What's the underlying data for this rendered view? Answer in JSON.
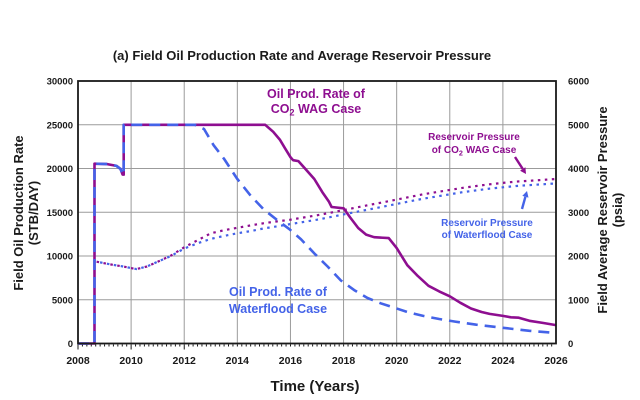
{
  "page": {
    "background": "#ffffff"
  },
  "chart_data": {
    "type": "line",
    "title": "(a) Field Oil Production Rate and Average Reservoir Pressure",
    "x_axis": {
      "label": "Time (Years)",
      "min": 2008,
      "max": 2026,
      "ticks": [
        2008,
        2010,
        2012,
        2014,
        2016,
        2018,
        2020,
        2022,
        2024,
        2026
      ],
      "minor_tick_step_years": 0.1667
    },
    "y_left": {
      "title_lines": [
        "Field Oil Production Rate",
        "(STB/DAY)"
      ],
      "min": 0,
      "max": 30000,
      "ticks": [
        0,
        5000,
        10000,
        15000,
        20000,
        25000,
        30000
      ]
    },
    "y_right": {
      "title_lines": [
        "Field Average Reservoir Pressure",
        "(psia)"
      ],
      "min": 0,
      "max": 6000,
      "ticks": [
        0,
        1000,
        2000,
        3000,
        4000,
        5000,
        6000
      ]
    },
    "grid": true,
    "colors": {
      "purple": "#8E0E90",
      "blue": "#4463E8",
      "grid": "#9b9b9b",
      "axis": "#1a1a1a",
      "text": "#1a1a1a"
    },
    "series": [
      {
        "name": "reservoir-pressure-co2-wag",
        "axis": "right",
        "color": "#8E0E90",
        "style": "dot",
        "width": 2.2,
        "points": [
          [
            2008.7,
            1870
          ],
          [
            2009.2,
            1810
          ],
          [
            2009.7,
            1760
          ],
          [
            2010.2,
            1700
          ],
          [
            2010.6,
            1760
          ],
          [
            2011.0,
            1870
          ],
          [
            2011.5,
            2010
          ],
          [
            2012.0,
            2200
          ],
          [
            2012.5,
            2360
          ],
          [
            2013.0,
            2520
          ],
          [
            2013.5,
            2590
          ],
          [
            2014.0,
            2645
          ],
          [
            2014.5,
            2700
          ],
          [
            2015.0,
            2750
          ],
          [
            2015.5,
            2790
          ],
          [
            2016.0,
            2830
          ],
          [
            2016.5,
            2880
          ],
          [
            2017.0,
            2930
          ],
          [
            2017.5,
            2990
          ],
          [
            2018.0,
            3050
          ],
          [
            2018.5,
            3110
          ],
          [
            2019.0,
            3170
          ],
          [
            2019.5,
            3230
          ],
          [
            2020.0,
            3290
          ],
          [
            2020.5,
            3350
          ],
          [
            2021.0,
            3410
          ],
          [
            2021.5,
            3460
          ],
          [
            2022.0,
            3510
          ],
          [
            2022.5,
            3560
          ],
          [
            2023.0,
            3600
          ],
          [
            2023.5,
            3640
          ],
          [
            2024.0,
            3670
          ],
          [
            2024.5,
            3700
          ],
          [
            2025.0,
            3720
          ],
          [
            2025.5,
            3740
          ],
          [
            2026.0,
            3760
          ]
        ]
      },
      {
        "name": "reservoir-pressure-waterflood",
        "axis": "right",
        "color": "#4463E8",
        "style": "dot",
        "width": 2.2,
        "dashoffset": 3.5,
        "points": [
          [
            2008.7,
            1870
          ],
          [
            2009.2,
            1810
          ],
          [
            2009.7,
            1760
          ],
          [
            2010.2,
            1700
          ],
          [
            2010.6,
            1760
          ],
          [
            2011.0,
            1870
          ],
          [
            2011.5,
            2000
          ],
          [
            2012.0,
            2170
          ],
          [
            2012.5,
            2290
          ],
          [
            2013.0,
            2390
          ],
          [
            2013.5,
            2460
          ],
          [
            2014.0,
            2520
          ],
          [
            2014.5,
            2570
          ],
          [
            2015.0,
            2630
          ],
          [
            2015.5,
            2680
          ],
          [
            2016.0,
            2730
          ],
          [
            2016.5,
            2780
          ],
          [
            2017.0,
            2830
          ],
          [
            2017.5,
            2890
          ],
          [
            2018.0,
            2950
          ],
          [
            2018.5,
            3010
          ],
          [
            2019.0,
            3070
          ],
          [
            2019.5,
            3130
          ],
          [
            2020.0,
            3190
          ],
          [
            2020.5,
            3250
          ],
          [
            2021.0,
            3310
          ],
          [
            2021.5,
            3360
          ],
          [
            2022.0,
            3410
          ],
          [
            2022.5,
            3460
          ],
          [
            2023.0,
            3500
          ],
          [
            2023.5,
            3540
          ],
          [
            2024.0,
            3570
          ],
          [
            2024.5,
            3600
          ],
          [
            2025.0,
            3620
          ],
          [
            2025.5,
            3640
          ],
          [
            2026.0,
            3660
          ]
        ]
      },
      {
        "name": "oil-prod-rate-co2-wag",
        "axis": "left",
        "color": "#8E0E90",
        "style": "solid",
        "width": 2.6,
        "points": [
          [
            2008.0,
            0
          ],
          [
            2008.62,
            0
          ],
          [
            2008.62,
            20550
          ],
          [
            2009.1,
            20500
          ],
          [
            2009.45,
            20300
          ],
          [
            2009.6,
            19950
          ],
          [
            2009.68,
            19300
          ],
          [
            2009.72,
            19300
          ],
          [
            2009.72,
            25000
          ],
          [
            2015.05,
            25000
          ],
          [
            2015.35,
            24200
          ],
          [
            2015.6,
            23300
          ],
          [
            2015.8,
            22300
          ],
          [
            2016.0,
            21300
          ],
          [
            2016.1,
            20950
          ],
          [
            2016.3,
            20850
          ],
          [
            2016.55,
            20000
          ],
          [
            2016.9,
            18800
          ],
          [
            2017.2,
            17300
          ],
          [
            2017.45,
            16200
          ],
          [
            2017.55,
            15600
          ],
          [
            2018.0,
            15450
          ],
          [
            2018.25,
            14400
          ],
          [
            2018.55,
            13200
          ],
          [
            2018.85,
            12450
          ],
          [
            2019.15,
            12150
          ],
          [
            2019.7,
            12050
          ],
          [
            2020.0,
            10900
          ],
          [
            2020.4,
            8950
          ],
          [
            2020.8,
            7700
          ],
          [
            2021.2,
            6600
          ],
          [
            2021.6,
            5950
          ],
          [
            2022.0,
            5400
          ],
          [
            2022.4,
            4650
          ],
          [
            2022.8,
            4000
          ],
          [
            2023.2,
            3600
          ],
          [
            2023.5,
            3380
          ],
          [
            2024.0,
            3150
          ],
          [
            2024.3,
            3000
          ],
          [
            2024.6,
            2950
          ],
          [
            2025.0,
            2600
          ],
          [
            2025.5,
            2350
          ],
          [
            2026.0,
            2100
          ]
        ]
      },
      {
        "name": "oil-prod-rate-waterflood",
        "axis": "left",
        "color": "#4463E8",
        "style": "dash",
        "width": 2.6,
        "points": [
          [
            2008.0,
            0
          ],
          [
            2008.62,
            0
          ],
          [
            2008.62,
            20550
          ],
          [
            2009.1,
            20500
          ],
          [
            2009.45,
            20300
          ],
          [
            2009.6,
            19950
          ],
          [
            2009.68,
            19300
          ],
          [
            2009.72,
            19300
          ],
          [
            2009.72,
            25000
          ],
          [
            2012.4,
            25000
          ],
          [
            2012.75,
            24500
          ],
          [
            2013.1,
            22700
          ],
          [
            2013.5,
            21100
          ],
          [
            2014.0,
            18800
          ],
          [
            2014.5,
            16900
          ],
          [
            2015.0,
            15300
          ],
          [
            2015.5,
            14100
          ],
          [
            2015.95,
            13100
          ],
          [
            2016.4,
            11900
          ],
          [
            2016.9,
            10300
          ],
          [
            2017.4,
            8800
          ],
          [
            2017.9,
            7200
          ],
          [
            2018.4,
            6100
          ],
          [
            2018.9,
            5200
          ],
          [
            2019.4,
            4600
          ],
          [
            2019.9,
            4100
          ],
          [
            2020.4,
            3600
          ],
          [
            2021.0,
            3150
          ],
          [
            2021.6,
            2800
          ],
          [
            2022.2,
            2500
          ],
          [
            2023.0,
            2150
          ],
          [
            2024.0,
            1800
          ],
          [
            2025.0,
            1450
          ],
          [
            2026.0,
            1200
          ]
        ]
      }
    ],
    "annotations": [
      {
        "name": "label-oil-prod-rate-co2-wag",
        "lines": [
          "Oil Prod. Rate of",
          "CO2 WAG Case"
        ],
        "color": "#8E0E90",
        "x": 316,
        "baselines": [
          98,
          113
        ],
        "size": 12.5
      },
      {
        "name": "label-oil-prod-rate-waterflood",
        "lines": [
          "Oil Prod. Rate of",
          "Waterflood Case"
        ],
        "color": "#4463E8",
        "x": 278,
        "baselines": [
          296,
          313
        ],
        "size": 12.5
      },
      {
        "name": "label-reservoir-pressure-co2-wag",
        "lines": [
          "Reservoir Pressure",
          "of CO2 WAG Case"
        ],
        "color": "#8E0E90",
        "x": 474,
        "baselines": [
          140,
          153
        ],
        "size": 10
      },
      {
        "name": "label-reservoir-pressure-waterflood",
        "lines": [
          "Reservoir Pressure",
          "of Waterflood Case"
        ],
        "color": "#4463E8",
        "x": 487,
        "baselines": [
          226,
          238
        ],
        "size": 10
      }
    ],
    "arrows": [
      {
        "name": "arrow-to-co2-wag-pressure-line",
        "color": "#8E0E90",
        "x1": 515,
        "y1": 157,
        "x2": 526,
        "y2": 174
      },
      {
        "name": "arrow-to-waterflood-pressure-line",
        "color": "#4463E8",
        "x1": 522,
        "y1": 209,
        "x2": 527,
        "y2": 191
      }
    ],
    "legend_position": "inline-annotations",
    "x_axis_title_center": [
      315,
      391
    ],
    "title_center": [
      302,
      60
    ]
  }
}
